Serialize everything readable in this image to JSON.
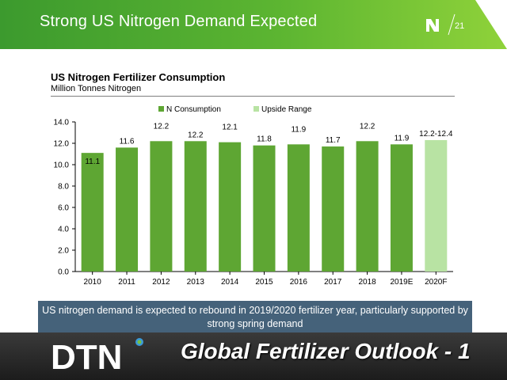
{
  "header": {
    "title": "Strong US Nitrogen Demand Expected",
    "page_number": "21",
    "colors": {
      "from": "#3c9a2e",
      "to": "#8fd23a"
    }
  },
  "chart_data": {
    "type": "bar",
    "title": "US Nitrogen Fertilizer Consumption",
    "subtitle": "Million Tonnes Nitrogen",
    "categories": [
      "2010",
      "2011",
      "2012",
      "2013",
      "2014",
      "2015",
      "2016",
      "2017",
      "2018",
      "2019E",
      "2020F"
    ],
    "series": [
      {
        "name": "N Consumption",
        "color": "#5ea633",
        "values": [
          11.1,
          11.6,
          12.2,
          12.2,
          12.1,
          11.8,
          11.9,
          11.7,
          12.2,
          11.9,
          null
        ],
        "labels": [
          "11.1",
          "11.6",
          "12.2",
          "12.2",
          "12.1",
          "11.8",
          "11.9",
          "11.7",
          "12.2",
          "11.9",
          ""
        ]
      },
      {
        "name": "Upside Range",
        "color": "#b8e3a3",
        "values": [
          null,
          null,
          null,
          null,
          null,
          null,
          null,
          null,
          null,
          null,
          12.3
        ],
        "labels": [
          "",
          "",
          "",
          "",
          "",
          "",
          "",
          "",
          "",
          "",
          "12.2-12.4"
        ]
      }
    ],
    "ylim": [
      0,
      14
    ],
    "yticks": [
      "0.0",
      "2.0",
      "4.0",
      "6.0",
      "8.0",
      "10.0",
      "12.0",
      "14.0"
    ],
    "legend_position": "top-center",
    "grid": false
  },
  "summary": {
    "text": "US nitrogen demand is expected to rebound in 2019/2020 fertilizer year, particularly supported by strong spring demand",
    "color": "#45627a"
  },
  "footer": {
    "brand": "DTN",
    "overlay_title": "Global Fertilizer Outlook - 1"
  }
}
